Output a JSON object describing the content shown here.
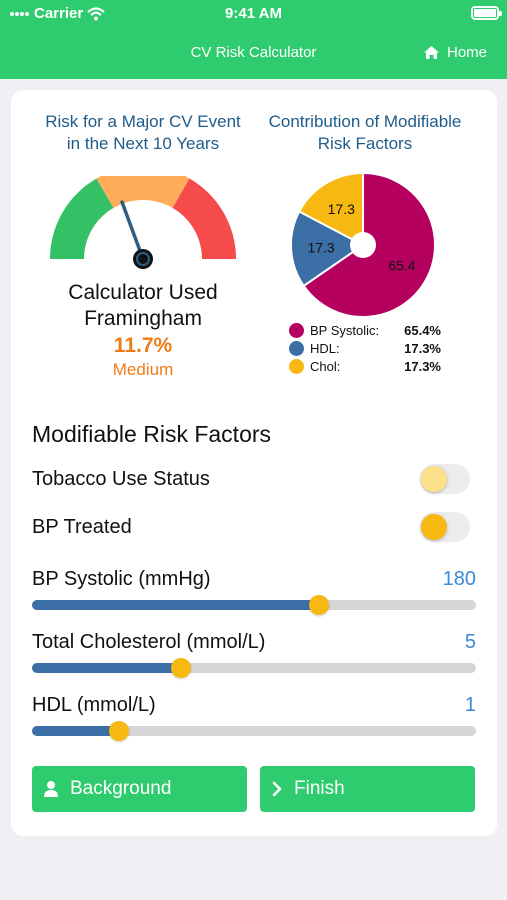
{
  "status_bar": {
    "carrier": "Carrier",
    "time": "9:41 AM"
  },
  "nav": {
    "title": "CV Risk Calculator",
    "home_label": "Home"
  },
  "risk_panel": {
    "title_line1": "Risk for a Major CV Event",
    "title_line2": "in the Next 10 Years",
    "calculator_line1": "Calculator Used",
    "calculator_line2": "Framingham",
    "risk_percent": "11.7%",
    "risk_level": "Medium",
    "gauge_colors": [
      "#34c165",
      "#ffad5a",
      "#f54b4b"
    ]
  },
  "contribution_panel": {
    "title_line1": "Contribution of Modifiable",
    "title_line2": "Risk Factors"
  },
  "chart_data": {
    "type": "pie",
    "slices": [
      {
        "label": "BP Systolic:",
        "value": 65.4,
        "display": "65.4%",
        "slice_label": "65.4",
        "color": "#b5005f"
      },
      {
        "label": "HDL:",
        "value": 17.3,
        "display": "17.3%",
        "slice_label": "17.3",
        "color": "#3a6ea5"
      },
      {
        "label": "Chol:",
        "value": 17.3,
        "display": "17.3%",
        "slice_label": "17.3",
        "color": "#f8b812"
      }
    ]
  },
  "modifiable": {
    "section_title": "Modifiable Risk Factors",
    "toggles": [
      {
        "label": "Tobacco Use Status",
        "on": false
      },
      {
        "label": "BP Treated",
        "on": true
      }
    ],
    "sliders": [
      {
        "label": "BP Systolic (mmHg)",
        "value": "180",
        "fill_fraction": 0.646
      },
      {
        "label": "Total Cholesterol (mmol/L)",
        "value": "5",
        "fill_fraction": 0.335
      },
      {
        "label": "HDL (mmol/L)",
        "value": "1",
        "fill_fraction": 0.196
      }
    ]
  },
  "buttons": {
    "background_label": "Background",
    "finish_label": "Finish"
  },
  "colors": {
    "accent": "#2ecc6e",
    "title_blue": "#1f5c8a",
    "value_orange": "#f07b16",
    "slider_value_blue": "#3b8ad9"
  }
}
